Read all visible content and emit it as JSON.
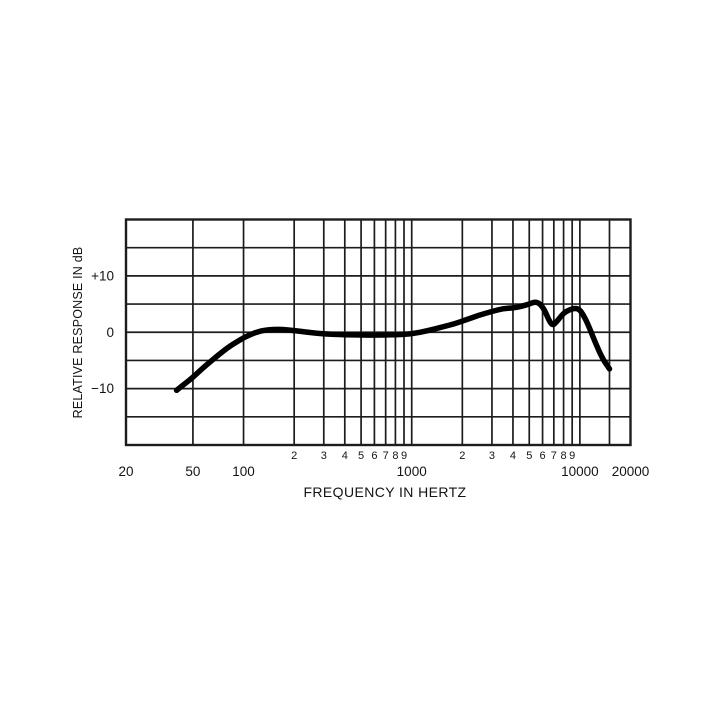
{
  "figure": {
    "background_color": "#ffffff"
  },
  "chart_data": {
    "type": "line",
    "title": "",
    "xlabel": "FREQUENCY IN HERTZ",
    "ylabel": "RELATIVE RESPONSE IN dB",
    "x_scale": "log",
    "xlim": [
      20,
      20000
    ],
    "ylim": [
      -20,
      20
    ],
    "grid": true,
    "grid_color": "#1c1c1c",
    "line_color": "#000000",
    "y_gridline_step_db": 5,
    "x_gridlines_hz": [
      20,
      50,
      100,
      200,
      300,
      400,
      500,
      600,
      700,
      800,
      900,
      1000,
      2000,
      3000,
      4000,
      5000,
      6000,
      7000,
      8000,
      9000,
      10000,
      15000,
      20000
    ],
    "y_tick_labels": [
      {
        "db": 10,
        "label": "+10"
      },
      {
        "db": 0,
        "label": "0"
      },
      {
        "db": -10,
        "label": "−10"
      }
    ],
    "x_major_tick_labels": [
      {
        "hz": 20,
        "label": "20"
      },
      {
        "hz": 50,
        "label": "50"
      },
      {
        "hz": 100,
        "label": "100"
      },
      {
        "hz": 1000,
        "label": "1000"
      },
      {
        "hz": 10000,
        "label": "10000"
      },
      {
        "hz": 20000,
        "label": "20000"
      }
    ],
    "x_minor_tick_labels": [
      {
        "hz": 200,
        "label": "2"
      },
      {
        "hz": 300,
        "label": "3"
      },
      {
        "hz": 400,
        "label": "4"
      },
      {
        "hz": 500,
        "label": "5"
      },
      {
        "hz": 600,
        "label": "6"
      },
      {
        "hz": 700,
        "label": "7"
      },
      {
        "hz": 800,
        "label": "8"
      },
      {
        "hz": 900,
        "label": "9"
      },
      {
        "hz": 2000,
        "label": "2"
      },
      {
        "hz": 3000,
        "label": "3"
      },
      {
        "hz": 4000,
        "label": "4"
      },
      {
        "hz": 5000,
        "label": "5"
      },
      {
        "hz": 6000,
        "label": "6"
      },
      {
        "hz": 7000,
        "label": "7"
      },
      {
        "hz": 8000,
        "label": "8"
      },
      {
        "hz": 9000,
        "label": "9"
      }
    ],
    "series": [
      {
        "name": "frequency-response-curve",
        "color": "#000000",
        "stroke_width": 5.5,
        "points_hz_db": [
          [
            40,
            -10.3
          ],
          [
            44,
            -9.3
          ],
          [
            50,
            -8.0
          ],
          [
            56,
            -6.6
          ],
          [
            63,
            -5.3
          ],
          [
            71,
            -4.0
          ],
          [
            80,
            -2.8
          ],
          [
            90,
            -1.8
          ],
          [
            100,
            -1.0
          ],
          [
            110,
            -0.4
          ],
          [
            122,
            0.1
          ],
          [
            135,
            0.4
          ],
          [
            150,
            0.5
          ],
          [
            170,
            0.5
          ],
          [
            200,
            0.3
          ],
          [
            240,
            0.0
          ],
          [
            300,
            -0.3
          ],
          [
            400,
            -0.45
          ],
          [
            500,
            -0.5
          ],
          [
            650,
            -0.5
          ],
          [
            800,
            -0.45
          ],
          [
            1000,
            -0.3
          ],
          [
            1250,
            0.3
          ],
          [
            1500,
            0.9
          ],
          [
            1800,
            1.5
          ],
          [
            2100,
            2.2
          ],
          [
            2500,
            3.0
          ],
          [
            3000,
            3.7
          ],
          [
            3500,
            4.2
          ],
          [
            4000,
            4.3
          ],
          [
            4500,
            4.6
          ],
          [
            5000,
            5.0
          ],
          [
            5400,
            5.4
          ],
          [
            5800,
            5.1
          ],
          [
            6200,
            3.8
          ],
          [
            6600,
            1.9
          ],
          [
            6900,
            1.2
          ],
          [
            7300,
            1.9
          ],
          [
            8000,
            3.4
          ],
          [
            8700,
            4.0
          ],
          [
            9400,
            4.3
          ],
          [
            10000,
            4.0
          ],
          [
            10700,
            2.6
          ],
          [
            11500,
            0.5
          ],
          [
            12500,
            -2.2
          ],
          [
            13700,
            -4.8
          ],
          [
            15000,
            -6.5
          ]
        ]
      }
    ]
  }
}
